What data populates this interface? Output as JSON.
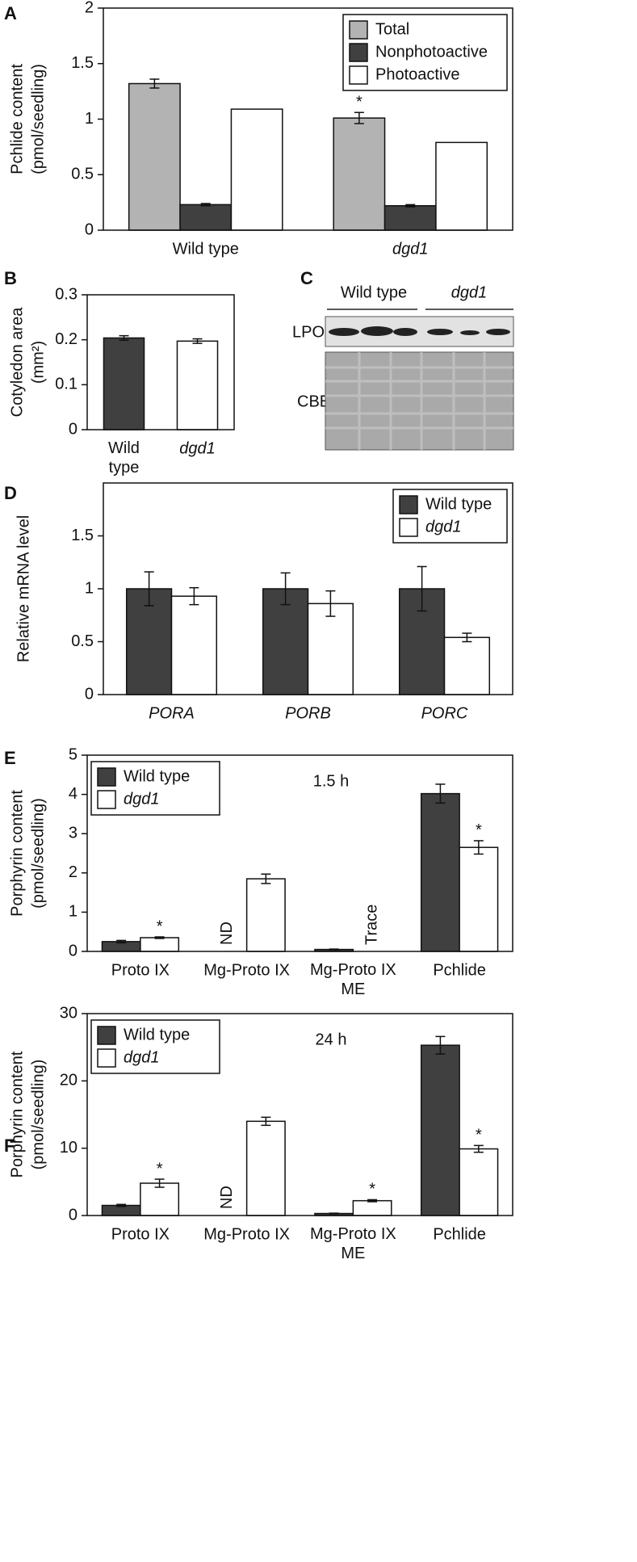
{
  "blot": {
    "panel": "C",
    "groups": [
      "Wild type",
      "dgd1"
    ],
    "rows": [
      "LPOR",
      "CBB"
    ]
  },
  "chart_data": [
    {
      "type": "bar",
      "panel": "A",
      "ylabel": [
        "Pchlide content",
        "(pmol/seedling)"
      ],
      "categories": [
        "Wild type",
        "dgd1"
      ],
      "categories_italic": [
        false,
        true
      ],
      "series": [
        {
          "name": "Total",
          "color": "#b3b3b3",
          "values": [
            1.32,
            1.01
          ],
          "errors": [
            0.04,
            0.05
          ],
          "annotations": [
            null,
            "*"
          ]
        },
        {
          "name": "Nonphotoactive",
          "color": "#404040",
          "values": [
            0.23,
            0.22
          ],
          "errors": [
            0.01,
            0.01
          ]
        },
        {
          "name": "Photoactive",
          "color": "#ffffff",
          "values": [
            1.09,
            0.79
          ]
        }
      ],
      "ylim": [
        0,
        2
      ],
      "yticks": [
        0,
        0.5,
        1,
        1.5,
        2
      ],
      "legend": "top-right"
    },
    {
      "type": "bar",
      "panel": "B",
      "ylabel": [
        "Cotyledon area",
        "(mm²)"
      ],
      "categories": [
        "Wild type",
        "dgd1"
      ],
      "categories_italic": [
        false,
        true
      ],
      "series": [
        {
          "color": "#404040",
          "values": [
            0.204,
            null
          ],
          "errors": [
            0.005,
            null
          ]
        },
        {
          "color": "#ffffff",
          "values": [
            null,
            0.197
          ],
          "errors": [
            null,
            0.005
          ]
        }
      ],
      "ylim": [
        0,
        0.3
      ],
      "yticks": [
        0,
        0.1,
        0.2,
        0.3
      ],
      "legend": "none"
    },
    {
      "type": "bar",
      "panel": "D",
      "ylabel": [
        "Relative mRNA level"
      ],
      "categories": [
        "PORA",
        "PORB",
        "PORC"
      ],
      "categories_italic": [
        true,
        true,
        true
      ],
      "series": [
        {
          "name": "Wild type",
          "color": "#404040",
          "values": [
            1.0,
            1.0,
            1.0
          ],
          "errors": [
            0.16,
            0.15,
            0.21
          ]
        },
        {
          "name": "dgd1",
          "italic": true,
          "color": "#ffffff",
          "values": [
            0.93,
            0.86,
            0.54
          ],
          "errors": [
            0.08,
            0.12,
            0.04
          ]
        }
      ],
      "ylim": [
        0,
        2
      ],
      "yticks": [
        0,
        0.5,
        1,
        1.5
      ],
      "legend": "top-right"
    },
    {
      "type": "bar",
      "panel": "E",
      "ylabel": [
        "Porphyrin content",
        "(pmol/seedling)"
      ],
      "note": "1.5 h",
      "categories": [
        "Proto IX",
        "Mg-Proto IX",
        "Mg-Proto IX ME",
        "Pchlide"
      ],
      "categories_italic": [
        false,
        false,
        false,
        false
      ],
      "series": [
        {
          "name": "Wild type",
          "color": "#404040",
          "values": [
            0.25,
            null,
            0.05,
            4.02
          ],
          "errors": [
            0.03,
            null,
            0.01,
            0.24
          ],
          "annotations": [
            null,
            "ND",
            null,
            null
          ]
        },
        {
          "name": "dgd1",
          "italic": true,
          "color": "#ffffff",
          "values": [
            0.35,
            1.85,
            null,
            2.65
          ],
          "errors": [
            0.02,
            0.12,
            null,
            0.17
          ],
          "annotations": [
            "*",
            null,
            "Trace",
            "*"
          ]
        }
      ],
      "ylim": [
        0,
        5
      ],
      "yticks": [
        0,
        1,
        2,
        3,
        4,
        5
      ],
      "legend": "top-left"
    },
    {
      "type": "bar",
      "panel": "F",
      "ylabel": [
        "Porphyrin content",
        "(pmol/seedling)"
      ],
      "note": "24 h",
      "categories": [
        "Proto IX",
        "Mg-Proto IX",
        "Mg-Proto IX ME",
        "Pchlide"
      ],
      "categories_italic": [
        false,
        false,
        false,
        false
      ],
      "series": [
        {
          "name": "Wild type",
          "color": "#404040",
          "values": [
            1.5,
            null,
            0.3,
            25.3
          ],
          "errors": [
            0.15,
            null,
            0.05,
            1.3
          ],
          "annotations": [
            null,
            "ND",
            null,
            null
          ]
        },
        {
          "name": "dgd1",
          "italic": true,
          "color": "#ffffff",
          "values": [
            4.8,
            14.0,
            2.2,
            9.9
          ],
          "errors": [
            0.6,
            0.6,
            0.15,
            0.5
          ],
          "annotations": [
            "*",
            null,
            "*",
            "*"
          ]
        }
      ],
      "ylim": [
        0,
        30
      ],
      "yticks": [
        0,
        10,
        20,
        30
      ],
      "legend": "top-left"
    }
  ]
}
